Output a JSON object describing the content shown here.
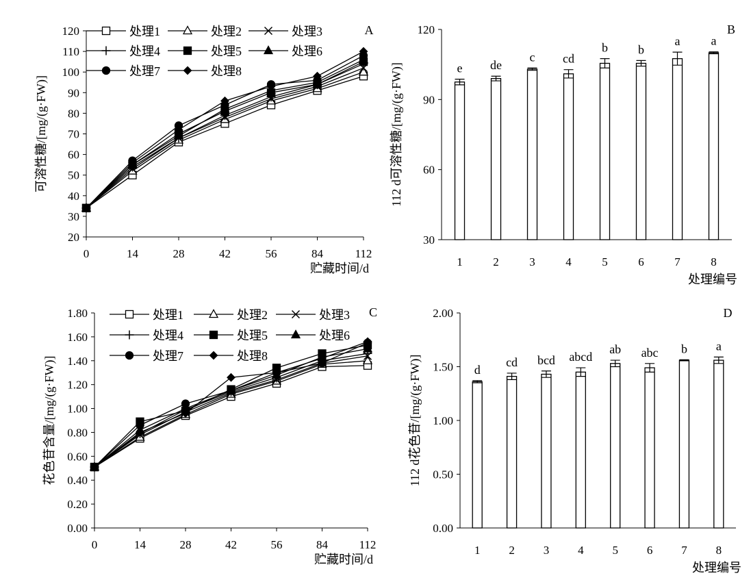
{
  "chart_data": [
    {
      "type": "line",
      "panel_label": "A",
      "xlabel": "贮藏时间/d",
      "ylabel": "可溶性糖/[mg/(g·FW)]",
      "categories": [
        "0",
        "14",
        "28",
        "42",
        "56",
        "84",
        "112"
      ],
      "ylim": [
        20,
        120
      ],
      "yticks": [
        "20",
        "30",
        "40",
        "50",
        "60",
        "70",
        "80",
        "90",
        "100",
        "110",
        "120"
      ],
      "legend_position": "top",
      "series": [
        {
          "name": "处理1",
          "marker": "square-open",
          "values": [
            34,
            50,
            66,
            75,
            84,
            91,
            98
          ]
        },
        {
          "name": "处理2",
          "marker": "triangle-open",
          "values": [
            34,
            52,
            67,
            77,
            86,
            92,
            100
          ]
        },
        {
          "name": "处理3",
          "marker": "x",
          "values": [
            34,
            53,
            68,
            78,
            87,
            93,
            102
          ]
        },
        {
          "name": "处理4",
          "marker": "plus",
          "values": [
            34,
            54,
            68,
            79,
            88,
            94,
            104
          ]
        },
        {
          "name": "处理5",
          "marker": "square-filled",
          "values": [
            34,
            55,
            70,
            81,
            90,
            94,
            105
          ]
        },
        {
          "name": "处理6",
          "marker": "triangle-filled",
          "values": [
            34,
            55,
            69,
            82,
            91,
            95,
            106
          ]
        },
        {
          "name": "处理7",
          "marker": "circle-filled",
          "values": [
            34,
            57,
            74,
            84,
            94,
            96,
            108
          ]
        },
        {
          "name": "处理8",
          "marker": "diamond-filled",
          "values": [
            34,
            56,
            72,
            86,
            93,
            98,
            110
          ]
        }
      ]
    },
    {
      "type": "bar",
      "panel_label": "B",
      "xlabel": "处理编号",
      "ylabel": "112 d可溶性糖/[mg/(g·FW)]",
      "categories": [
        "1",
        "2",
        "3",
        "4",
        "5",
        "6",
        "7",
        "8"
      ],
      "values": [
        97.5,
        99,
        103,
        101,
        105.5,
        105.5,
        107.5,
        110
      ],
      "errors": [
        1.2,
        1,
        0.5,
        1.8,
        2,
        1.2,
        2.8,
        0.4
      ],
      "letters": [
        "e",
        "de",
        "c",
        "cd",
        "b",
        "b",
        "a",
        "a"
      ],
      "ylim": [
        30,
        120
      ],
      "yticks": [
        "30",
        "60",
        "90",
        "120"
      ]
    },
    {
      "type": "line",
      "panel_label": "C",
      "xlabel": "贮藏时间/d",
      "ylabel": "花色苷含量/[mg/(g·FW)]",
      "categories": [
        "0",
        "14",
        "28",
        "42",
        "56",
        "84",
        "112"
      ],
      "ylim": [
        0,
        1.8
      ],
      "yticks": [
        "0.00",
        "0.20",
        "0.40",
        "0.60",
        "0.80",
        "1.00",
        "1.20",
        "1.40",
        "1.60",
        "1.80"
      ],
      "legend_position": "top",
      "series": [
        {
          "name": "处理1",
          "marker": "square-open",
          "values": [
            0.51,
            0.75,
            0.94,
            1.1,
            1.21,
            1.35,
            1.36
          ]
        },
        {
          "name": "处理2",
          "marker": "triangle-open",
          "values": [
            0.51,
            0.76,
            0.95,
            1.12,
            1.23,
            1.37,
            1.4
          ]
        },
        {
          "name": "处理3",
          "marker": "x",
          "values": [
            0.51,
            0.78,
            0.97,
            1.13,
            1.24,
            1.38,
            1.44
          ]
        },
        {
          "name": "处理4",
          "marker": "plus",
          "values": [
            0.51,
            0.79,
            0.99,
            1.14,
            1.26,
            1.4,
            1.46
          ]
        },
        {
          "name": "处理5",
          "marker": "square-filled",
          "values": [
            0.51,
            0.89,
            0.98,
            1.16,
            1.34,
            1.46,
            1.53
          ]
        },
        {
          "name": "处理6",
          "marker": "triangle-filled",
          "values": [
            0.51,
            0.82,
            1.0,
            1.15,
            1.28,
            1.43,
            1.5
          ]
        },
        {
          "name": "处理7",
          "marker": "circle-filled",
          "values": [
            0.51,
            0.86,
            1.04,
            1.15,
            1.3,
            1.38,
            1.55
          ]
        },
        {
          "name": "处理8",
          "marker": "diamond-filled",
          "values": [
            0.51,
            0.8,
            0.96,
            1.26,
            1.3,
            1.42,
            1.56
          ]
        }
      ]
    },
    {
      "type": "bar",
      "panel_label": "D",
      "xlabel": "处理编号",
      "ylabel": "112 d花色苷/[mg/(g·FW)]",
      "categories": [
        "1",
        "2",
        "3",
        "4",
        "5",
        "6",
        "7",
        "8"
      ],
      "values": [
        1.36,
        1.41,
        1.43,
        1.45,
        1.53,
        1.49,
        1.56,
        1.56
      ],
      "errors": [
        0.01,
        0.03,
        0.03,
        0.04,
        0.03,
        0.04,
        0.005,
        0.03
      ],
      "letters": [
        "d",
        "cd",
        "bcd",
        "abcd",
        "ab",
        "abc",
        "b",
        "a"
      ],
      "ylim": [
        0,
        2
      ],
      "yticks": [
        "0.00",
        "0.50",
        "1.00",
        "1.50",
        "2.00"
      ]
    }
  ]
}
